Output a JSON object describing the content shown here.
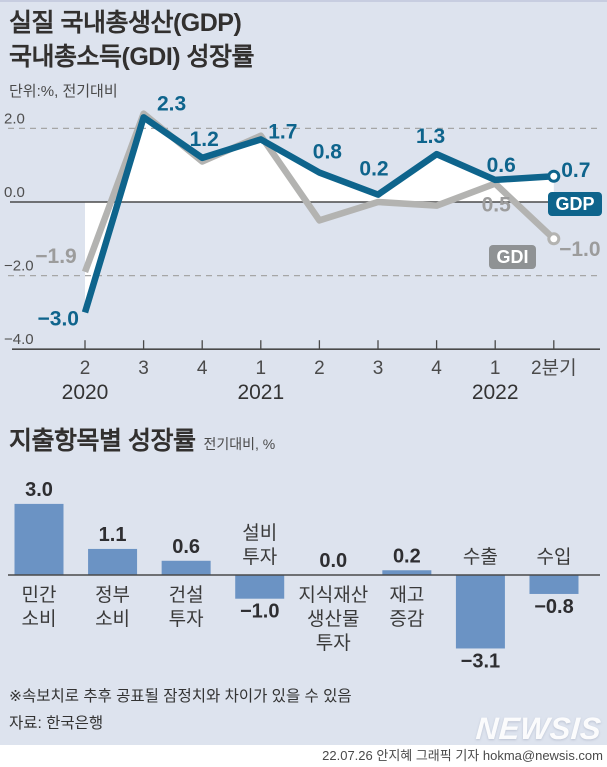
{
  "header": {
    "title_line1": "실질 국내총생산(GDP)",
    "title_line2": "국내총소득(GDI) 성장률",
    "unit_note": "단위:%, 전기대비"
  },
  "colors": {
    "background": "#dde3ee",
    "gdp": "#0e648c",
    "gdi_line": "#b3b3b1",
    "gdi_label": "#9c9c9c",
    "gdi_badge_bg": "#8f9294",
    "bar": "#6b93c4",
    "area_fill": "#ffffff",
    "axis": "#4a4a4a",
    "grid_dashed": "#a6a6a6",
    "text_dark": "#2e2e31"
  },
  "chart_data": [
    {
      "type": "line",
      "title": "실질 국내총생산(GDP) 국내총소득(GDI) 성장률",
      "unit": "단위:%, 전기대비",
      "xlabel": "",
      "ylabel": "%",
      "ylim": [
        -4.0,
        2.0
      ],
      "yticks": [
        2.0,
        0.0,
        -2.0,
        -4.0
      ],
      "grid": "dashed at 2.0 and -2.0, solid zero line",
      "x_tick_labels": [
        "2",
        "3",
        "4",
        "1",
        "2",
        "3",
        "4",
        "1",
        "2분기"
      ],
      "year_labels": [
        {
          "text": "2020",
          "index": 0
        },
        {
          "text": "2021",
          "index": 3
        },
        {
          "text": "2022",
          "index": 7
        }
      ],
      "series": [
        {
          "name": "GDP",
          "values": [
            -3.0,
            2.3,
            1.2,
            1.7,
            0.8,
            0.2,
            1.3,
            0.6,
            0.7
          ],
          "labels": [
            "−3.0",
            "2.3",
            "1.2",
            "1.7",
            "0.8",
            "0.2",
            "1.3",
            "0.6",
            "0.7"
          ]
        },
        {
          "name": "GDI",
          "values": [
            -1.9,
            2.4,
            1.1,
            1.8,
            -0.5,
            0.0,
            -0.1,
            0.5,
            -1.0
          ],
          "labels": [
            "−1.9",
            null,
            null,
            null,
            null,
            null,
            null,
            "0.5",
            "−1.0"
          ],
          "note": "unlabeled points estimated from line position"
        }
      ],
      "legend": "end-of-line badges GDP / GDI"
    },
    {
      "type": "bar",
      "title": "지출항목별 성장률",
      "unit": "전기대비, %",
      "categories": [
        "민간소비",
        "정부소비",
        "건설투자",
        "설비투자",
        "지식재산생산물투자",
        "재고증감",
        "수출",
        "수입"
      ],
      "category_lines": [
        [
          "민간",
          "소비"
        ],
        [
          "정부",
          "소비"
        ],
        [
          "건설",
          "투자"
        ],
        [
          "설비",
          "투자"
        ],
        [
          "지식재산",
          "생산물",
          "투자"
        ],
        [
          "재고",
          "증감"
        ],
        [
          "수출"
        ],
        [
          "수입"
        ]
      ],
      "values": [
        3.0,
        1.1,
        0.6,
        -1.0,
        0.0,
        0.2,
        -3.1,
        -0.8
      ],
      "value_labels": [
        "3.0",
        "1.1",
        "0.6",
        "−1.0",
        "0.0",
        "0.2",
        "−3.1",
        "−0.8"
      ],
      "ylim": [
        -3.5,
        3.2
      ]
    }
  ],
  "footer": {
    "note": "※속보치로 추후 공표될 잠정치와 차이가 있을 수 있음",
    "source": "자료: 한국은행",
    "logo": "NEWSIS",
    "credit": "22.07.26  안지혜 그래픽 기자 hokma@newsis.com"
  }
}
